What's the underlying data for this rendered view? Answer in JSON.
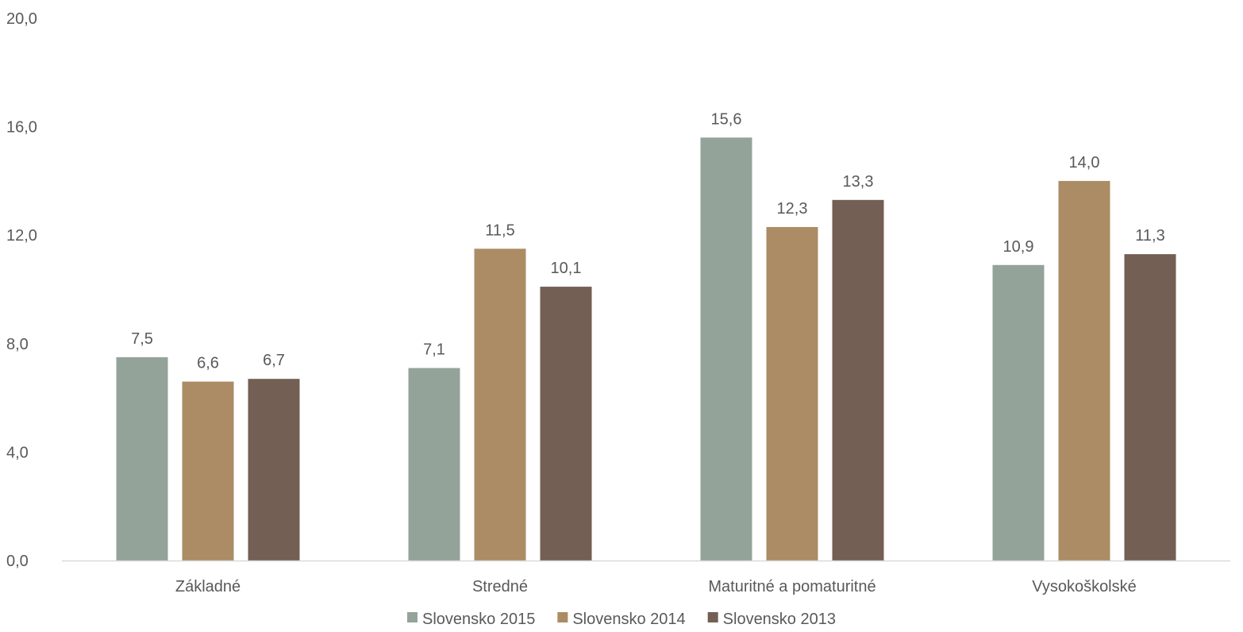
{
  "chart_data": {
    "type": "bar",
    "categories": [
      "Základné",
      "Stredné",
      "Maturitné a pomaturitné",
      "Vysokoškolské"
    ],
    "series": [
      {
        "name": "Slovensko 2015",
        "values": [
          7.5,
          7.1,
          15.6,
          10.9
        ],
        "labels": [
          "7,5",
          "7,1",
          "15,6",
          "10,9"
        ],
        "color": "#94a399"
      },
      {
        "name": "Slovensko 2014",
        "values": [
          6.6,
          11.5,
          12.3,
          14.0
        ],
        "labels": [
          "6,6",
          "11,5",
          "12,3",
          "14,0"
        ],
        "color": "#ab8c65"
      },
      {
        "name": "Slovensko 2013",
        "values": [
          6.7,
          10.1,
          13.3,
          11.3
        ],
        "labels": [
          "6,7",
          "10,1",
          "13,3",
          "11,3"
        ],
        "color": "#735f53"
      }
    ],
    "ylim": [
      0,
      20
    ],
    "yticks": [
      0,
      4,
      8,
      12,
      16,
      20
    ],
    "ytick_labels": [
      "0,0",
      "4,0",
      "8,0",
      "12,0",
      "16,0",
      "20,0"
    ],
    "grid": false,
    "legend_position": "bottom",
    "axis_color": "#d9d9d9",
    "text_color": "#595959"
  }
}
